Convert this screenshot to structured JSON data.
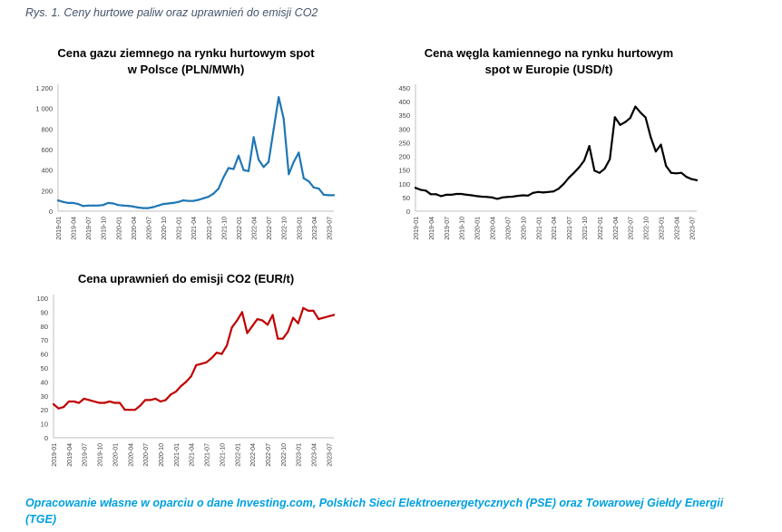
{
  "figure_caption": "Rys. 1. Ceny hurtowe paliw oraz uprawnień do emisji CO2",
  "footer": "Opracowanie własne w oparciu o dane Investing.com, Polskich Sieci Elektroenergetycznych (PSE) oraz Towarowej Giełdy Energii (TGE)",
  "chart_data": [
    {
      "type": "line",
      "title_lines": [
        "Cena gazu ziemnego na rynku hurtowym spot",
        "w Polsce (PLN/MWh)"
      ],
      "xlabel": "",
      "ylabel": "",
      "x_tick_labels": [
        "2019-01",
        "2019-04",
        "2019-07",
        "2019-10",
        "2020-01",
        "2020-04",
        "2020-07",
        "2020-10",
        "2021-01",
        "2021-04",
        "2021-07",
        "2021-10",
        "2022-01",
        "2022-04",
        "2022-07",
        "2022-10",
        "2023-01",
        "2023-04",
        "2023-07"
      ],
      "y_tick_labels": [
        "0",
        "200",
        "400",
        "600",
        "800",
        "1 000",
        "1 200"
      ],
      "ylim": [
        0,
        1200
      ],
      "grid": false,
      "color": "#1f77b4",
      "series": [
        {
          "values": [
            105,
            90,
            80,
            80,
            70,
            50,
            55,
            55,
            55,
            60,
            80,
            75,
            60,
            55,
            52,
            45,
            35,
            30,
            30,
            40,
            55,
            70,
            75,
            80,
            90,
            105,
            100,
            100,
            110,
            125,
            140,
            170,
            220,
            330,
            420,
            410,
            540,
            400,
            390,
            720,
            500,
            430,
            480,
            800,
            1110,
            900,
            360,
            480,
            570,
            320,
            290,
            230,
            220,
            160,
            155,
            155
          ]
        }
      ]
    },
    {
      "type": "line",
      "title_lines": [
        "Cena węgla kamiennego na rynku hurtowym",
        "spot w Europie (USD/t)"
      ],
      "xlabel": "",
      "ylabel": "",
      "x_tick_labels": [
        "2019-01",
        "2019-04",
        "2019-07",
        "2019-10",
        "2020-01",
        "2020-04",
        "2020-07",
        "2020-10",
        "2021-01",
        "2021-04",
        "2021-07",
        "2021-10",
        "2022-01",
        "2022-04",
        "2022-07",
        "2022-10",
        "2023-01",
        "2023-04",
        "2023-07"
      ],
      "y_tick_labels": [
        "0",
        "50",
        "100",
        "150",
        "200",
        "250",
        "300",
        "350",
        "400",
        "450"
      ],
      "ylim": [
        0,
        450
      ],
      "grid": false,
      "color": "#000000",
      "series": [
        {
          "values": [
            85,
            78,
            75,
            62,
            62,
            55,
            60,
            60,
            63,
            63,
            60,
            58,
            55,
            53,
            52,
            50,
            45,
            50,
            52,
            53,
            56,
            58,
            57,
            67,
            70,
            68,
            70,
            72,
            82,
            100,
            122,
            140,
            160,
            185,
            238,
            148,
            140,
            155,
            190,
            343,
            315,
            325,
            340,
            382,
            360,
            342,
            270,
            218,
            243,
            165,
            140,
            138,
            140,
            125,
            117,
            113
          ]
        }
      ]
    },
    {
      "type": "line",
      "title_lines": [
        "Cena uprawnień do emisji CO2 (EUR/t)"
      ],
      "xlabel": "",
      "ylabel": "",
      "x_tick_labels": [
        "2019-01",
        "2019-04",
        "2019-07",
        "2019-10",
        "2020-01",
        "2020-04",
        "2020-07",
        "2020-10",
        "2021-01",
        "2021-04",
        "2021-07",
        "2021-10",
        "2022-01",
        "2022-04",
        "2022-07",
        "2022-10",
        "2023-01",
        "2023-04",
        "2023-07"
      ],
      "y_tick_labels": [
        "0",
        "10",
        "20",
        "30",
        "40",
        "50",
        "60",
        "70",
        "80",
        "90",
        "100"
      ],
      "ylim": [
        0,
        100
      ],
      "grid": false,
      "color": "#c00000",
      "series": [
        {
          "values": [
            24,
            21,
            22,
            26,
            26,
            25,
            28,
            27,
            26,
            25,
            25,
            26,
            25,
            25,
            20,
            20,
            20,
            23,
            27,
            27,
            28,
            26,
            27,
            31,
            33,
            37,
            40,
            44,
            52,
            53,
            54,
            57,
            61,
            60,
            66,
            79,
            84,
            90,
            75,
            80,
            85,
            84,
            81,
            88,
            71,
            71,
            76,
            86,
            82,
            93,
            91,
            91,
            85,
            86,
            87,
            88
          ]
        }
      ]
    }
  ]
}
